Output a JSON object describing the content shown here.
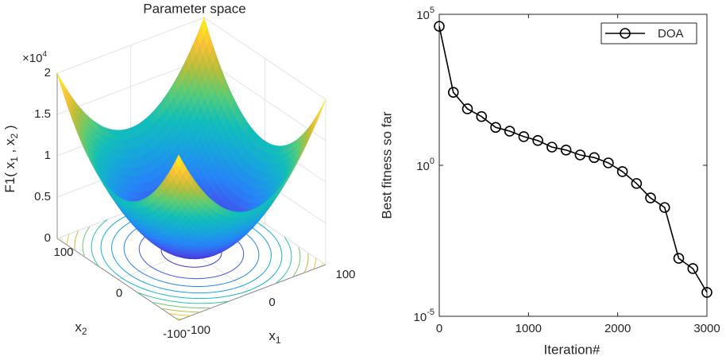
{
  "chart_data": [
    {
      "type": "surface",
      "title": "Parameter space",
      "xlabel": {
        "text": "x",
        "sub": "1"
      },
      "ylabel": {
        "text": "x",
        "sub": "2"
      },
      "zlabel": [
        {
          "text": "F1( x"
        },
        {
          "sub": "1"
        },
        {
          "text": " ,  x"
        },
        {
          "sub": "2"
        },
        {
          "text": " )"
        }
      ],
      "xlim": [
        -100,
        100
      ],
      "xticks": [
        -100,
        0,
        100
      ],
      "ylim": [
        -100,
        100
      ],
      "yticks": [
        -100,
        0,
        100
      ],
      "zlim": [
        0,
        20000
      ],
      "zticks": [
        {
          "value": 0,
          "label": "0"
        },
        {
          "value": 5000,
          "label": "0.5"
        },
        {
          "value": 10000,
          "label": "1"
        },
        {
          "value": 15000,
          "label": "1.5"
        },
        {
          "value": 20000,
          "label": "2"
        }
      ],
      "zmultiplier": {
        "base": "×10",
        "exp": "4"
      },
      "grid": true,
      "colormap": "parula"
    },
    {
      "type": "line",
      "xlabel": "Iteration#",
      "ylabel": "Best fitness so far",
      "x": [
        0,
        158,
        316,
        474,
        632,
        789,
        947,
        1105,
        1263,
        1421,
        1579,
        1737,
        1895,
        2053,
        2211,
        2368,
        2526,
        2684,
        2842,
        3000
      ],
      "series": [
        {
          "name": "DOA",
          "color": "#000000",
          "values": [
            40000,
            260,
            74,
            41,
            18,
            13.5,
            8.9,
            6.6,
            4.0,
            3.2,
            2.2,
            1.8,
            1.2,
            0.62,
            0.25,
            0.083,
            0.04,
            0.00083,
            0.00038,
            6.2e-05
          ]
        }
      ],
      "xlim": [
        0,
        3000
      ],
      "xticks": [
        0,
        1000,
        2000,
        3000
      ],
      "ylim": [
        1e-05,
        100000
      ],
      "log_y": true,
      "yticks": [
        {
          "value": 1e-05,
          "label": "10",
          "exp": "-5"
        },
        {
          "value": 1,
          "label": "10",
          "exp": "0"
        },
        {
          "value": 100000,
          "label": "10",
          "exp": "5"
        }
      ],
      "legend": "upper right",
      "grid": false
    }
  ]
}
